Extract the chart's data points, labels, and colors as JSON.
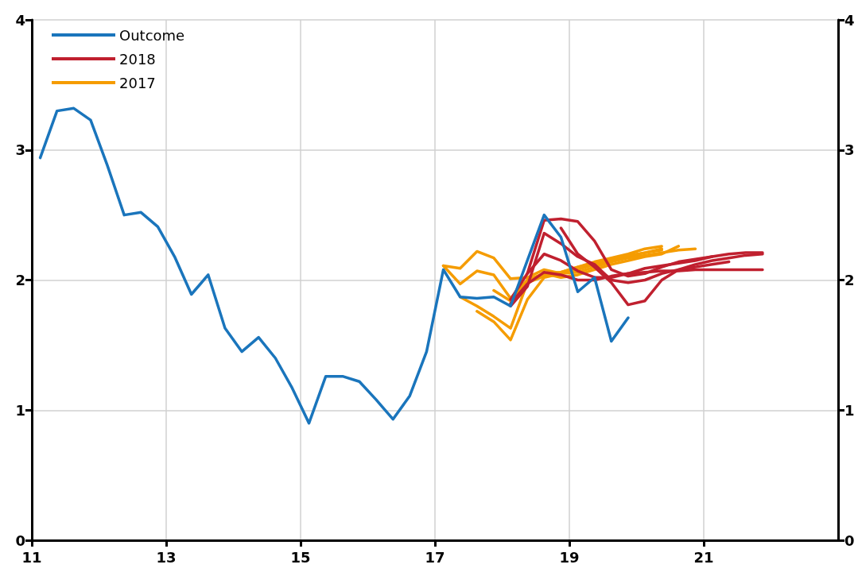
{
  "chart_data": {
    "type": "line",
    "xlim": [
      11,
      23
    ],
    "xticks": [
      11,
      13,
      15,
      17,
      19,
      21
    ],
    "ylim": [
      0,
      4
    ],
    "yticks": [
      0,
      1,
      2,
      3,
      4
    ],
    "y2lim": [
      0,
      4
    ],
    "y2ticks": [
      0,
      1,
      2,
      3,
      4
    ],
    "grid": true,
    "legend": "top left",
    "marker": "none",
    "line_style": "solid",
    "series": [
      {
        "name": "Outcome",
        "color": "#1a75bc",
        "x": [
          11.125,
          11.375,
          11.625,
          11.875,
          12.125,
          12.375,
          12.625,
          12.875,
          13.125,
          13.375,
          13.625,
          13.875,
          14.125,
          14.375,
          14.625,
          14.875,
          15.125,
          15.375,
          15.625,
          15.875,
          16.125,
          16.375,
          16.625,
          16.875,
          17.125,
          17.375,
          17.625,
          17.875,
          18.125,
          18.375,
          18.625,
          18.875,
          19.125,
          19.375,
          19.625,
          19.875
        ],
        "values": [
          2.94,
          3.3,
          3.32,
          3.23,
          2.88,
          2.5,
          2.52,
          2.41,
          2.18,
          1.89,
          2.04,
          1.63,
          1.45,
          1.56,
          1.4,
          1.17,
          0.9,
          1.26,
          1.26,
          1.22,
          1.08,
          0.93,
          1.11,
          1.45,
          2.08,
          1.87,
          1.86,
          1.87,
          1.8,
          2.15,
          2.5,
          2.33,
          1.91,
          2.02,
          1.53,
          1.71
        ]
      },
      {
        "name": "2018",
        "color": "#c0202f",
        "x": [
          18.125,
          18.375,
          18.625,
          18.875,
          19.125,
          19.375,
          19.625,
          19.875,
          20.125,
          20.375,
          20.625,
          20.875,
          21.125,
          21.375,
          21.625,
          21.875
        ],
        "values": [
          1.85,
          2.05,
          2.46,
          2.47,
          2.45,
          2.3,
          2.08,
          2.03,
          2.05,
          2.1,
          2.14,
          2.16,
          2.18,
          2.2,
          2.21,
          2.21
        ]
      },
      {
        "color": "#c0202f",
        "x": [
          18.875,
          19.125,
          19.375,
          19.625,
          19.875,
          20.125,
          20.375,
          20.625,
          20.875,
          21.125,
          21.375,
          21.625,
          21.875
        ],
        "values": [
          2.4,
          2.2,
          2.1,
          1.98,
          1.81,
          1.84,
          2.0,
          2.08,
          2.12,
          2.15,
          2.17,
          2.19,
          2.2
        ]
      },
      {
        "color": "#c0202f",
        "x": [
          18.125,
          18.375,
          18.625,
          18.875,
          19.125,
          19.375,
          19.625,
          19.875,
          20.125,
          20.375,
          20.625,
          20.875,
          21.125,
          21.375
        ],
        "values": [
          1.8,
          1.95,
          2.36,
          2.28,
          2.18,
          2.12,
          2.0,
          1.98,
          2.0,
          2.05,
          2.08,
          2.1,
          2.12,
          2.14
        ]
      },
      {
        "color": "#c0202f",
        "x": [
          18.125,
          18.375,
          18.625,
          18.875,
          19.125,
          19.375,
          19.625,
          19.875,
          20.125,
          20.375,
          20.625,
          20.875,
          21.125,
          21.375,
          21.625,
          21.875
        ],
        "values": [
          1.82,
          1.97,
          2.06,
          2.04,
          2.0,
          2.0,
          2.03,
          2.05,
          2.06,
          2.07,
          2.07,
          2.08,
          2.08,
          2.08,
          2.08,
          2.08
        ]
      },
      {
        "color": "#c0202f",
        "x": [
          18.375,
          18.625,
          18.875,
          19.125,
          19.375,
          19.625,
          19.875,
          20.125,
          20.375,
          20.625,
          20.875,
          21.125
        ],
        "values": [
          2.05,
          2.2,
          2.15,
          2.07,
          2.02,
          2.02,
          2.05,
          2.09,
          2.11,
          2.13,
          2.15,
          2.18
        ]
      },
      {
        "name": "2017",
        "color": "#f59c00",
        "x": [
          17.125,
          17.375,
          17.625,
          17.875,
          18.125,
          18.375,
          18.625,
          18.875,
          19.125,
          19.375,
          19.625,
          19.875,
          20.125,
          20.375,
          20.625,
          20.875
        ],
        "values": [
          2.11,
          2.09,
          2.22,
          2.17,
          2.01,
          2.02,
          2.08,
          2.05,
          2.06,
          2.1,
          2.14,
          2.17,
          2.19,
          2.21,
          2.23,
          2.24
        ]
      },
      {
        "color": "#f59c00",
        "x": [
          17.125,
          17.375,
          17.625,
          17.875,
          18.125,
          18.375,
          18.625,
          18.875,
          19.125,
          19.375,
          19.625,
          19.875,
          20.125,
          20.375,
          20.625
        ],
        "values": [
          2.11,
          1.97,
          2.07,
          2.04,
          1.86,
          2.0,
          2.05,
          2.02,
          2.04,
          2.08,
          2.12,
          2.15,
          2.18,
          2.2,
          2.26
        ]
      },
      {
        "color": "#f59c00",
        "x": [
          17.875,
          18.125,
          18.375,
          18.625,
          18.875,
          19.125,
          19.375,
          19.625,
          19.875,
          20.125,
          20.375
        ],
        "values": [
          1.92,
          1.84,
          2.0,
          2.05,
          2.06,
          2.1,
          2.13,
          2.16,
          2.19,
          2.21,
          2.23
        ]
      },
      {
        "color": "#f59c00",
        "x": [
          17.625,
          17.875,
          18.125,
          18.375,
          18.625,
          18.875,
          19.125,
          19.375,
          19.625,
          19.875,
          20.125,
          20.375
        ],
        "values": [
          1.76,
          1.68,
          1.54,
          1.85,
          2.02,
          2.05,
          2.08,
          2.12,
          2.15,
          2.18,
          2.21,
          2.24
        ]
      },
      {
        "color": "#f59c00",
        "x": [
          17.375,
          17.625,
          17.875,
          18.125,
          18.375,
          18.625,
          18.875,
          19.125,
          19.375,
          19.625,
          19.875,
          20.125,
          20.375
        ],
        "values": [
          1.87,
          1.8,
          1.72,
          1.63,
          1.98,
          2.03,
          2.06,
          2.1,
          2.14,
          2.17,
          2.2,
          2.24,
          2.26
        ]
      }
    ]
  }
}
